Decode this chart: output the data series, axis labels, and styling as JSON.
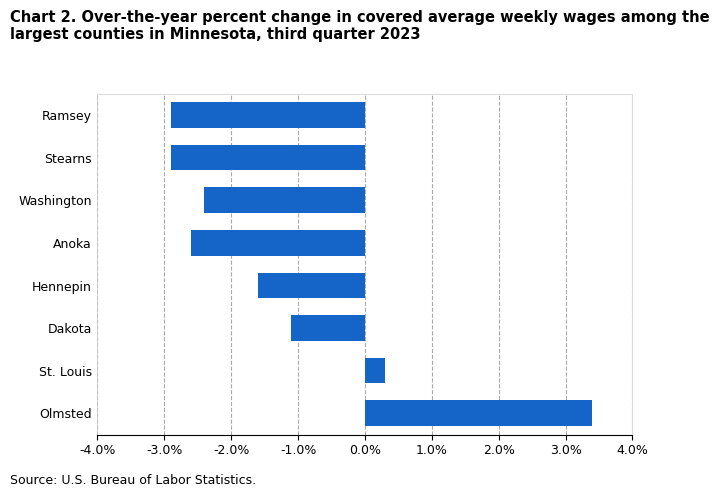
{
  "title_line1": "Chart 2. Over-the-year percent change in covered average weekly wages among the",
  "title_line2": "largest counties in Minnesota, third quarter 2023",
  "categories": [
    "Ramsey",
    "Stearns",
    "Washington",
    "Anoka",
    "Hennepin",
    "Dakota",
    "St. Louis",
    "Olmsted"
  ],
  "values": [
    -2.9,
    -2.9,
    -2.4,
    -2.6,
    -1.6,
    -1.1,
    0.3,
    3.4
  ],
  "bar_color": "#1565C8",
  "xlim": [
    -4.0,
    4.0
  ],
  "xticks": [
    -4.0,
    -3.0,
    -2.0,
    -1.0,
    0.0,
    1.0,
    2.0,
    3.0,
    4.0
  ],
  "source": "Source: U.S. Bureau of Labor Statistics.",
  "background_color": "#ffffff",
  "grid_color": "#aaaaaa",
  "title_fontsize": 10.5,
  "tick_fontsize": 9,
  "source_fontsize": 9
}
